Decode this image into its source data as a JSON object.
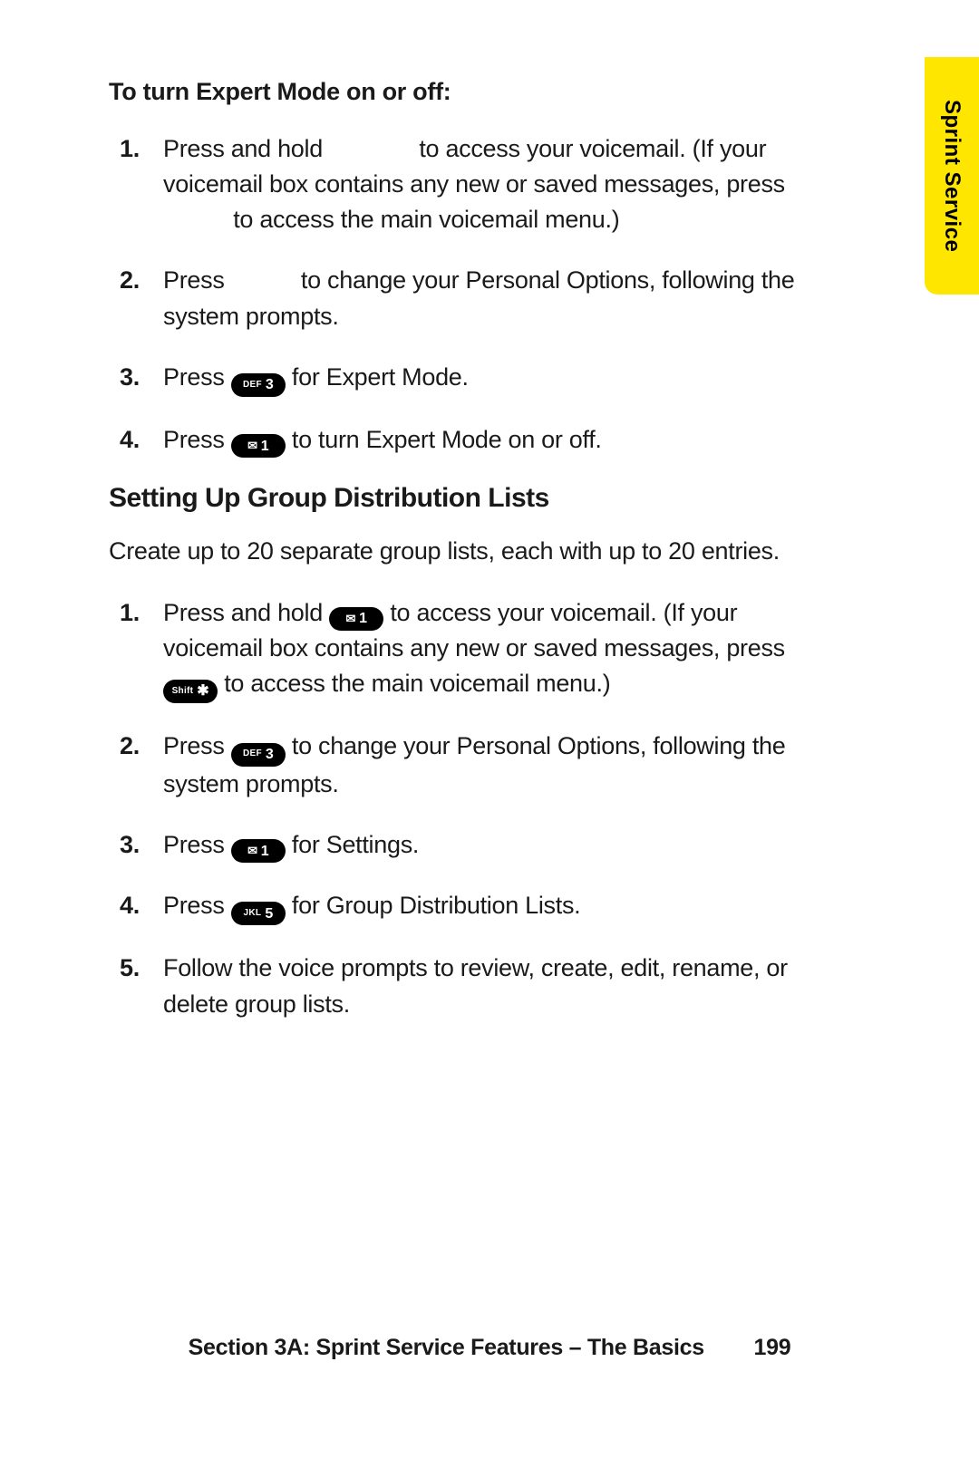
{
  "sideTab": "Sprint Service",
  "expert": {
    "heading": "To turn Expert Mode on or off:",
    "s1a": "Press and hold ",
    "s1b": " to access your voicemail. (If your voicemail box contains any new or saved messages, press ",
    "s1c": " to access the main voicemail menu.)",
    "s2a": "Press ",
    "s2b": " to change your Personal Options, following the system prompts.",
    "s3a": "Press ",
    "s3b": " for Expert Mode.",
    "s4a": "Press ",
    "s4b": " to turn Expert Mode on or off."
  },
  "groups": {
    "title": "Setting Up Group Distribution Lists",
    "intro": "Create up to 20 separate group lists, each with up to 20 entries.",
    "s1a": "Press and hold ",
    "s1b": " to access your voicemail. (If your voicemail box contains any new or saved messages, press ",
    "s1c": " to access the main voicemail menu.)",
    "s2a": "Press ",
    "s2b": " to change your Personal Options, following the system prompts.",
    "s3a": "Press ",
    "s3b": " for Settings.",
    "s4a": "Press ",
    "s4b": " for Group Distribution Lists.",
    "s5": "Follow the voice prompts to review, create, edit, rename, or delete group lists."
  },
  "keys": {
    "def3_sub": "DEF",
    "def3_main": "3",
    "env1_main": "1",
    "shift_sub": "Shift",
    "jkl5_sub": "JKL",
    "jkl5_main": "5"
  },
  "nums": {
    "n1": "1.",
    "n2": "2.",
    "n3": "3.",
    "n4": "4.",
    "n5": "5."
  },
  "footer": {
    "text": "Section 3A: Sprint Service Features – The Basics",
    "page": "199"
  }
}
